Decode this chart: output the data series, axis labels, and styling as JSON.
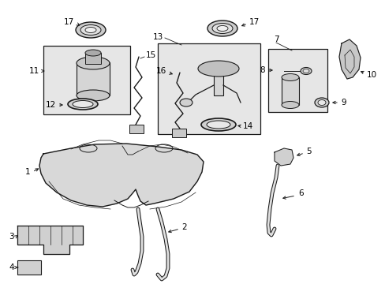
{
  "bg_color": "#ffffff",
  "line_color": "#1a1a1a",
  "box_fill": "#e8e8e8",
  "text_color": "#000000",
  "figsize": [
    4.89,
    3.6
  ],
  "dpi": 100
}
